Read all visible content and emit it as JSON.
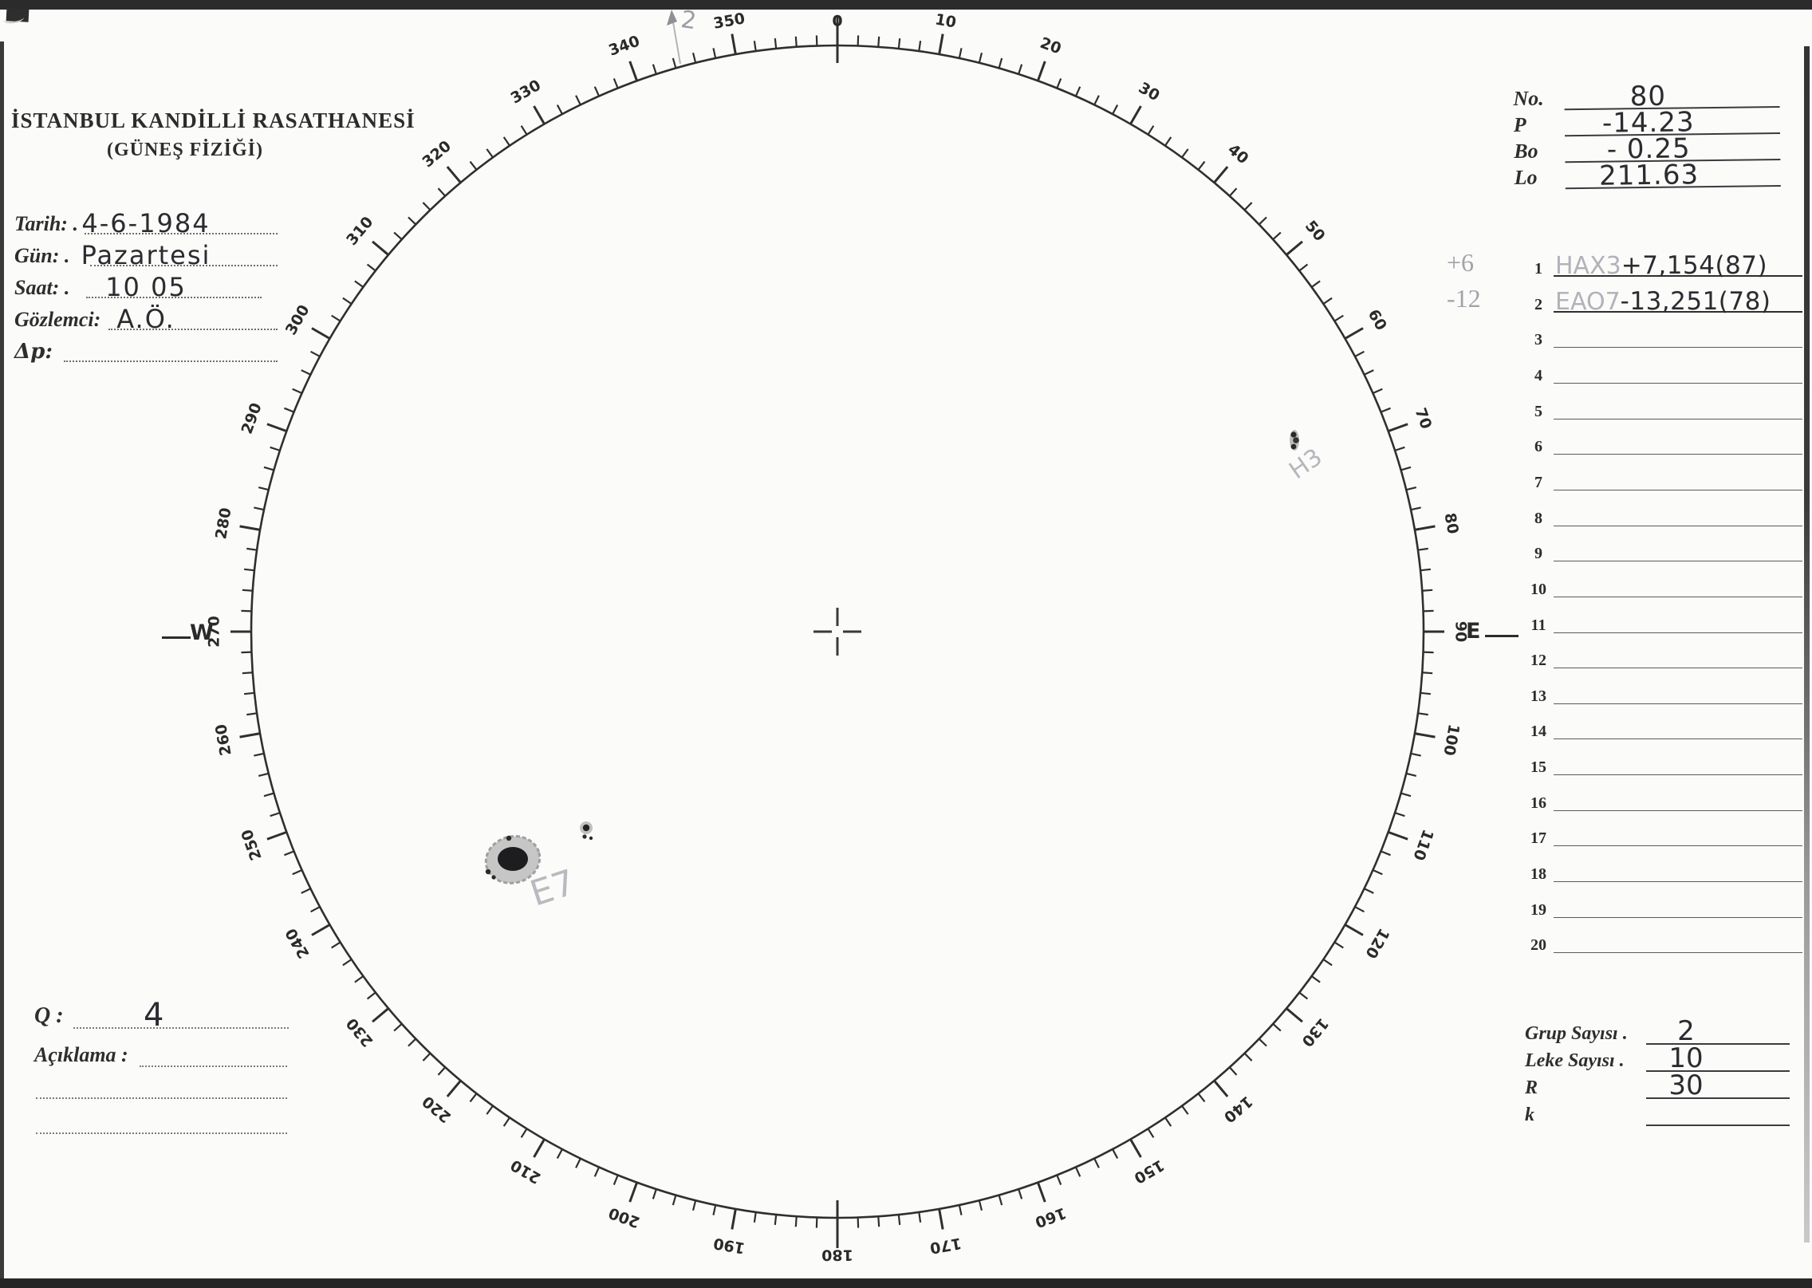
{
  "header": {
    "title_line1": "İSTANBUL KANDİLLİ RASATHANESİ",
    "title_line2": "(GÜNEŞ FİZİĞİ)"
  },
  "form": {
    "rows": [
      {
        "label": "Tarih: .",
        "value": "4-6-1984"
      },
      {
        "label": "Gün: .",
        "value": "Pazartesi"
      },
      {
        "label": "Saat: .",
        "value": "10 05"
      },
      {
        "label": "Gözlemci:",
        "value": "A.Ö."
      },
      {
        "label": "Δp:",
        "value": ""
      }
    ]
  },
  "top_right": {
    "rows": [
      {
        "label": "No.",
        "value": "80"
      },
      {
        "label": "P",
        "value": "-14.23"
      },
      {
        "label": "Bo",
        "value": "- 0.25"
      },
      {
        "label": "Lo",
        "value": "211.63"
      }
    ]
  },
  "right_list": {
    "rows": [
      {
        "num": "1",
        "pencil_margin": "+6",
        "pencil_class": "HAX3",
        "pen_value": "+7,154(87)"
      },
      {
        "num": "2",
        "pencil_margin": "-12",
        "pencil_class": "EAO7",
        "pen_value": "-13,251(78)"
      },
      {
        "num": "3",
        "pencil_margin": "",
        "pencil_class": "",
        "pen_value": ""
      },
      {
        "num": "4",
        "pencil_margin": "",
        "pencil_class": "",
        "pen_value": ""
      },
      {
        "num": "5",
        "pencil_margin": "",
        "pencil_class": "",
        "pen_value": ""
      },
      {
        "num": "6",
        "pencil_margin": "",
        "pencil_class": "",
        "pen_value": ""
      },
      {
        "num": "7",
        "pencil_margin": "",
        "pencil_class": "",
        "pen_value": ""
      },
      {
        "num": "8",
        "pencil_margin": "",
        "pencil_class": "",
        "pen_value": ""
      },
      {
        "num": "9",
        "pencil_margin": "",
        "pencil_class": "",
        "pen_value": ""
      },
      {
        "num": "10",
        "pencil_margin": "",
        "pencil_class": "",
        "pen_value": ""
      },
      {
        "num": "11",
        "pencil_margin": "",
        "pencil_class": "",
        "pen_value": ""
      },
      {
        "num": "12",
        "pencil_margin": "",
        "pencil_class": "",
        "pen_value": ""
      },
      {
        "num": "13",
        "pencil_margin": "",
        "pencil_class": "",
        "pen_value": ""
      },
      {
        "num": "14",
        "pencil_margin": "",
        "pencil_class": "",
        "pen_value": ""
      },
      {
        "num": "15",
        "pencil_margin": "",
        "pencil_class": "",
        "pen_value": ""
      },
      {
        "num": "16",
        "pencil_margin": "",
        "pencil_class": "",
        "pen_value": ""
      },
      {
        "num": "17",
        "pencil_margin": "",
        "pencil_class": "",
        "pen_value": ""
      },
      {
        "num": "18",
        "pencil_margin": "",
        "pencil_class": "",
        "pen_value": ""
      },
      {
        "num": "19",
        "pencil_margin": "",
        "pencil_class": "",
        "pen_value": ""
      },
      {
        "num": "20",
        "pencil_margin": "",
        "pencil_class": "",
        "pen_value": ""
      }
    ]
  },
  "bottom_right": {
    "rows": [
      {
        "label": "Grup Sayısı .",
        "value": "2"
      },
      {
        "label": "Leke Sayısı .",
        "value": "10"
      },
      {
        "label": "R",
        "value": "30"
      },
      {
        "label": "k",
        "value": ""
      }
    ]
  },
  "bottom_left": {
    "q_label": "Q :",
    "q_value": "4",
    "aciklama_label": "Açıklama :"
  },
  "dial": {
    "tick_step_deg": 2,
    "major_step_deg": 10,
    "labels": [
      "0",
      "10",
      "20",
      "30",
      "40",
      "50",
      "60",
      "70",
      "80",
      "90",
      "100",
      "110",
      "120",
      "130",
      "140",
      "150",
      "160",
      "170",
      "180",
      "190",
      "200",
      "210",
      "220",
      "230",
      "240",
      "250",
      "260",
      "270",
      "280",
      "290",
      "300",
      "310",
      "320",
      "330",
      "340",
      "350"
    ],
    "west_label": "W",
    "east_label": "E"
  },
  "annotations": {
    "pole_arrow_label": "2",
    "group_north_label": "H3",
    "group_south_label": "E7"
  }
}
